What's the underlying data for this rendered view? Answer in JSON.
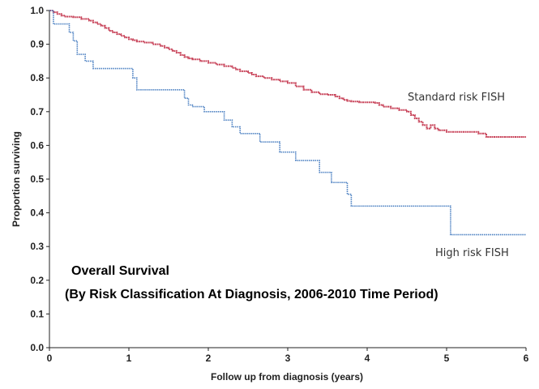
{
  "chart_data": {
    "type": "line",
    "title": "Overall Survival",
    "subtitle": "(By Risk Classification At Diagnosis, 2006-2010 Time Period)",
    "xlabel": "Follow up from diagnosis (years)",
    "ylabel": "Proportion surviving",
    "xlim": [
      0,
      6
    ],
    "ylim": [
      0,
      1
    ],
    "x_ticks": [
      "0",
      "1",
      "2",
      "3",
      "4",
      "5",
      "6"
    ],
    "y_ticks": [
      "0.0",
      "0.1",
      "0.2",
      "0.3",
      "0.4",
      "0.5",
      "0.6",
      "0.7",
      "0.8",
      "0.9",
      "1.0"
    ],
    "grid": false,
    "legend": "none",
    "series": [
      {
        "name": "Standard risk FISH",
        "color": "#c8445a",
        "step": true,
        "x": [
          0,
          0.05,
          0.1,
          0.15,
          0.2,
          0.3,
          0.4,
          0.5,
          0.55,
          0.6,
          0.65,
          0.7,
          0.75,
          0.8,
          0.85,
          0.9,
          0.95,
          1.0,
          1.05,
          1.1,
          1.2,
          1.3,
          1.4,
          1.45,
          1.5,
          1.55,
          1.6,
          1.65,
          1.7,
          1.75,
          1.8,
          1.9,
          2.0,
          2.1,
          2.2,
          2.3,
          2.35,
          2.4,
          2.5,
          2.55,
          2.6,
          2.7,
          2.8,
          2.9,
          3.0,
          3.1,
          3.2,
          3.3,
          3.4,
          3.5,
          3.6,
          3.65,
          3.7,
          3.75,
          3.8,
          3.9,
          4.1,
          4.15,
          4.2,
          4.3,
          4.4,
          4.5,
          4.55,
          4.6,
          4.65,
          4.7,
          4.75,
          4.8,
          4.85,
          4.9,
          5.0,
          5.2,
          5.4,
          5.5,
          5.55,
          5.9,
          6.0
        ],
        "y": [
          1.0,
          0.995,
          0.99,
          0.985,
          0.982,
          0.98,
          0.975,
          0.97,
          0.965,
          0.96,
          0.955,
          0.948,
          0.94,
          0.935,
          0.93,
          0.925,
          0.92,
          0.915,
          0.912,
          0.908,
          0.905,
          0.9,
          0.895,
          0.89,
          0.885,
          0.88,
          0.875,
          0.868,
          0.862,
          0.858,
          0.855,
          0.85,
          0.845,
          0.84,
          0.835,
          0.83,
          0.825,
          0.82,
          0.815,
          0.81,
          0.805,
          0.8,
          0.795,
          0.79,
          0.785,
          0.775,
          0.765,
          0.758,
          0.752,
          0.75,
          0.745,
          0.74,
          0.735,
          0.732,
          0.73,
          0.728,
          0.726,
          0.72,
          0.715,
          0.71,
          0.705,
          0.7,
          0.69,
          0.68,
          0.67,
          0.66,
          0.65,
          0.66,
          0.65,
          0.645,
          0.64,
          0.64,
          0.635,
          0.625,
          0.625,
          0.625,
          0.625
        ],
        "label": "Standard risk FISH"
      },
      {
        "name": "High risk FISH",
        "color": "#4a7fc1",
        "step": true,
        "x": [
          0,
          0.05,
          0.25,
          0.3,
          0.35,
          0.45,
          0.55,
          1.05,
          1.1,
          1.7,
          1.75,
          1.8,
          1.95,
          2.2,
          2.3,
          2.4,
          2.65,
          2.9,
          3.1,
          3.4,
          3.55,
          3.75,
          3.8,
          5.05,
          6.0
        ],
        "y": [
          1.0,
          0.96,
          0.935,
          0.91,
          0.87,
          0.85,
          0.828,
          0.8,
          0.765,
          0.74,
          0.72,
          0.715,
          0.7,
          0.675,
          0.655,
          0.635,
          0.61,
          0.58,
          0.555,
          0.52,
          0.49,
          0.455,
          0.42,
          0.335,
          0.335
        ],
        "label": "High risk FISH"
      }
    ]
  }
}
